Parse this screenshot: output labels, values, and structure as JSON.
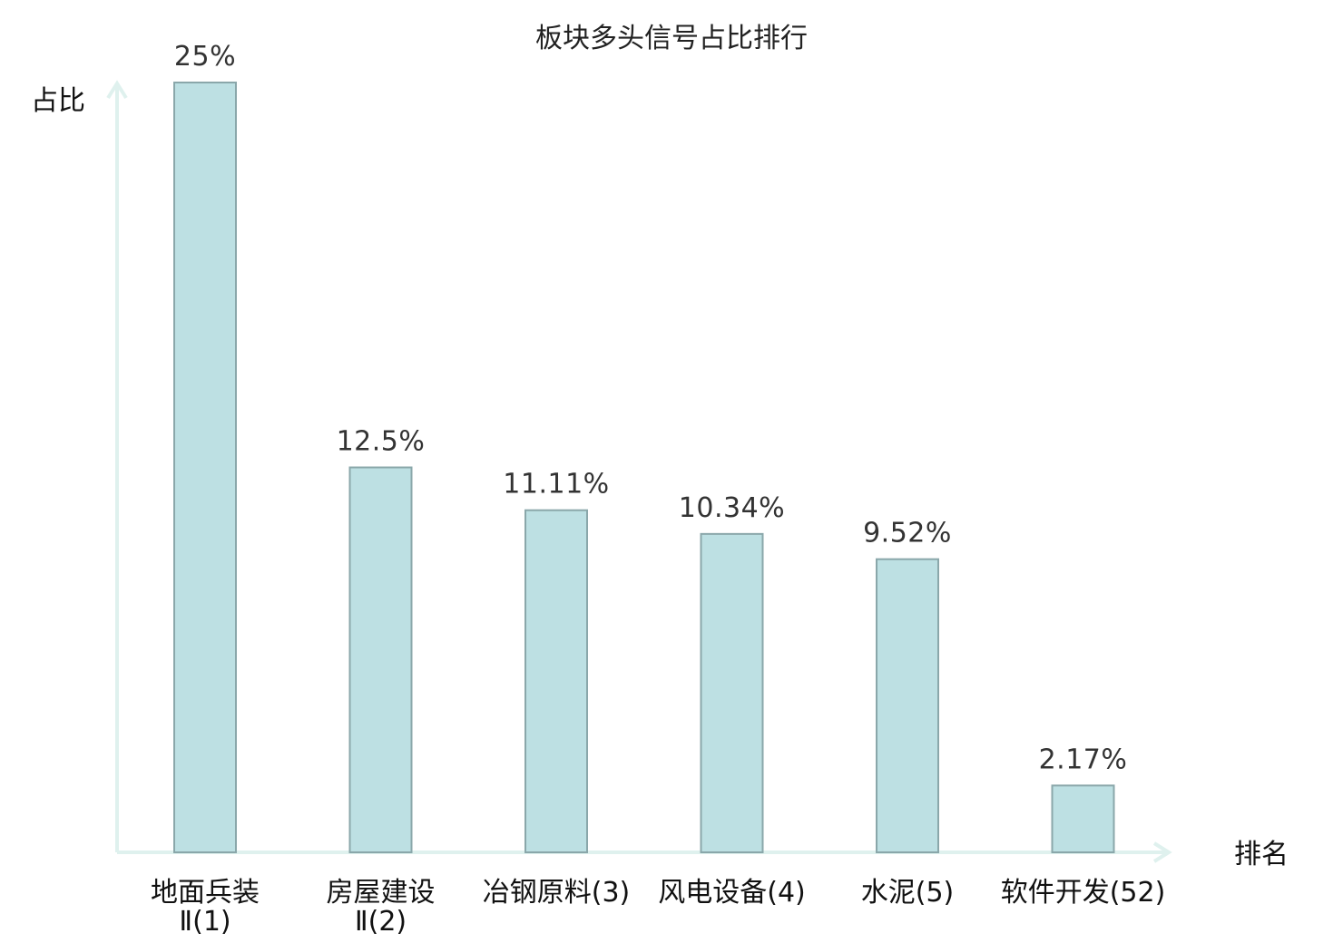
{
  "chart_data": {
    "type": "bar",
    "title": "板块多头信号占比排行",
    "ylabel": "占比",
    "xlabel": "排名",
    "ylim": [
      0,
      25
    ],
    "grid": false,
    "categories": [
      {
        "name_line1": "地面兵装",
        "name_line2": "Ⅱ(1)",
        "highlight": false
      },
      {
        "name_line1": "房屋建设",
        "name_line2": "Ⅱ(2)",
        "highlight": false
      },
      {
        "name_line1": "冶钢原料(3)",
        "name_line2": "",
        "highlight": false
      },
      {
        "name_line1": "风电设备(4)",
        "name_line2": "",
        "highlight": false
      },
      {
        "name_line1": "水泥(5)",
        "name_line2": "",
        "highlight": false
      },
      {
        "name_line1": "软件开发(52)",
        "name_line2": "",
        "highlight": true
      }
    ],
    "values": [
      25,
      12.5,
      11.11,
      10.34,
      9.52,
      2.17
    ],
    "value_labels": [
      "25%",
      "12.5%",
      "11.11%",
      "10.34%",
      "9.52%",
      "2.17%"
    ]
  },
  "colors": {
    "bar_fill": "#bde0e3",
    "bar_stroke": "#8aa7aa",
    "axis": "#dff1ee",
    "highlight_text": "#e02020",
    "text": "#111111"
  }
}
